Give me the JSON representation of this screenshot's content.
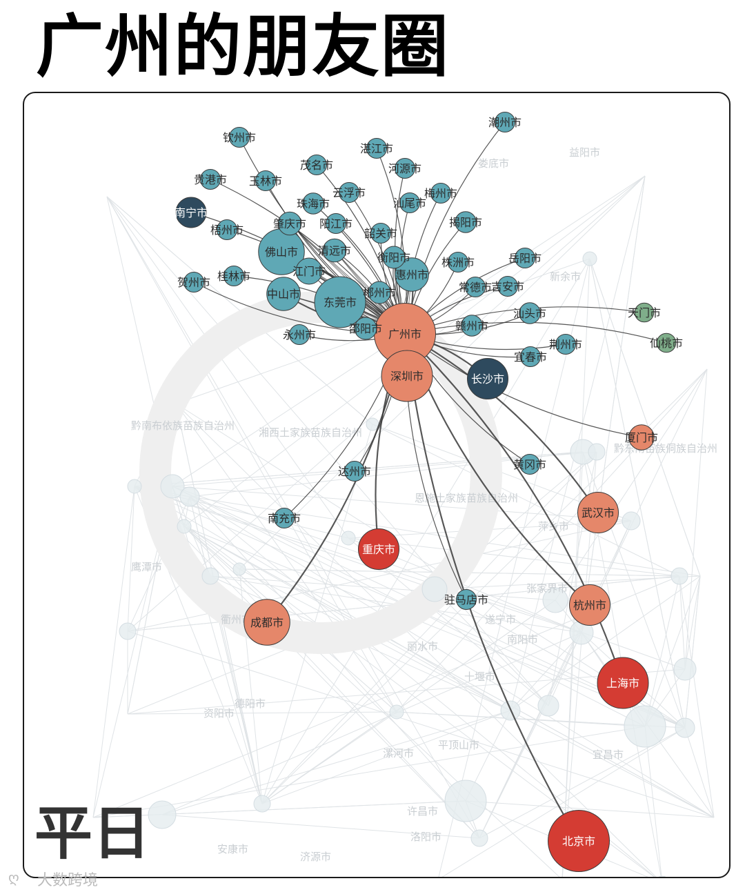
{
  "title": "广州的朋友圈",
  "period_label": "平日",
  "watermark": "大数跨境",
  "colors": {
    "teal": "#5fa8b5",
    "dark": "#2e4a5e",
    "orange": "#e5876a",
    "red": "#d43c33",
    "green": "#7fae8a",
    "edge": "#3a3a3a"
  },
  "hub": "广州市",
  "nodes": [
    {
      "id": "广州市",
      "group": "orange",
      "size": 5
    },
    {
      "id": "深圳市",
      "group": "orange",
      "size": 4
    },
    {
      "id": "北京市",
      "group": "red",
      "size": 5
    },
    {
      "id": "上海市",
      "group": "red",
      "size": 4
    },
    {
      "id": "重庆市",
      "group": "red",
      "size": 3
    },
    {
      "id": "成都市",
      "group": "orange",
      "size": 3.5
    },
    {
      "id": "杭州市",
      "group": "orange",
      "size": 3
    },
    {
      "id": "武汉市",
      "group": "orange",
      "size": 3
    },
    {
      "id": "厦门市",
      "group": "orange",
      "size": 1.5
    },
    {
      "id": "长沙市",
      "group": "dark",
      "size": 3
    },
    {
      "id": "南宁市",
      "group": "dark",
      "size": 2
    },
    {
      "id": "东莞市",
      "group": "teal",
      "size": 4
    },
    {
      "id": "佛山市",
      "group": "teal",
      "size": 3.5
    },
    {
      "id": "中山市",
      "group": "teal",
      "size": 2.3
    },
    {
      "id": "惠州市",
      "group": "teal",
      "size": 2.3
    },
    {
      "id": "江门市",
      "group": "teal",
      "size": 1.6
    },
    {
      "id": "清远市",
      "group": "teal",
      "size": 1.3
    },
    {
      "id": "肇庆市",
      "group": "teal",
      "size": 1.3
    },
    {
      "id": "郴州市",
      "group": "teal",
      "size": 1.2
    },
    {
      "id": "衡阳市",
      "group": "teal",
      "size": 1.2
    },
    {
      "id": "邵阳市",
      "group": "teal",
      "size": 1.2
    },
    {
      "id": "钦州市",
      "group": "teal",
      "size": 1
    },
    {
      "id": "湛江市",
      "group": "teal",
      "size": 1
    },
    {
      "id": "潮州市",
      "group": "teal",
      "size": 1
    },
    {
      "id": "茂名市",
      "group": "teal",
      "size": 1
    },
    {
      "id": "河源市",
      "group": "teal",
      "size": 1
    },
    {
      "id": "贵港市",
      "group": "teal",
      "size": 1
    },
    {
      "id": "玉林市",
      "group": "teal",
      "size": 1
    },
    {
      "id": "云浮市",
      "group": "teal",
      "size": 1
    },
    {
      "id": "梅州市",
      "group": "teal",
      "size": 1
    },
    {
      "id": "珠海市",
      "group": "teal",
      "size": 1.1
    },
    {
      "id": "汕尾市",
      "group": "teal",
      "size": 1
    },
    {
      "id": "阳江市",
      "group": "teal",
      "size": 1
    },
    {
      "id": "揭阳市",
      "group": "teal",
      "size": 1.1
    },
    {
      "id": "梧州市",
      "group": "teal",
      "size": 1
    },
    {
      "id": "韶关市",
      "group": "teal",
      "size": 1
    },
    {
      "id": "株洲市",
      "group": "teal",
      "size": 1
    },
    {
      "id": "岳阳市",
      "group": "teal",
      "size": 1
    },
    {
      "id": "桂林市",
      "group": "teal",
      "size": 1
    },
    {
      "id": "贺州市",
      "group": "teal",
      "size": 1
    },
    {
      "id": "常德市",
      "group": "teal",
      "size": 1
    },
    {
      "id": "吉安市",
      "group": "teal",
      "size": 1
    },
    {
      "id": "汕头市",
      "group": "teal",
      "size": 1.1
    },
    {
      "id": "天门市",
      "group": "green",
      "size": 0.9
    },
    {
      "id": "赣州市",
      "group": "teal",
      "size": 1.1
    },
    {
      "id": "永州市",
      "group": "teal",
      "size": 1
    },
    {
      "id": "荆州市",
      "group": "teal",
      "size": 1
    },
    {
      "id": "仙桃市",
      "group": "green",
      "size": 0.9
    },
    {
      "id": "宜春市",
      "group": "teal",
      "size": 1
    },
    {
      "id": "达州市",
      "group": "teal",
      "size": 1
    },
    {
      "id": "黄冈市",
      "group": "teal",
      "size": 1
    },
    {
      "id": "南充市",
      "group": "teal",
      "size": 1
    },
    {
      "id": "驻马店市",
      "group": "teal",
      "size": 1
    }
  ],
  "background_labels": [
    "黔南布依族苗族自治州",
    "湘西土家族苗族自治州",
    "恩施土家族苗族自治州",
    "萍乡市",
    "新余市",
    "益阳市",
    "娄底市",
    "丽水市",
    "十堰市",
    "许昌市",
    "洛阳市",
    "漯河市",
    "平顶山市",
    "安康市",
    "济源市",
    "资阳市",
    "德阳市",
    "遂宁市",
    "南阳市",
    "宜昌市",
    "张家界市",
    "衢州市",
    "鹰潭市",
    "黔东南苗族侗族自治州"
  ]
}
